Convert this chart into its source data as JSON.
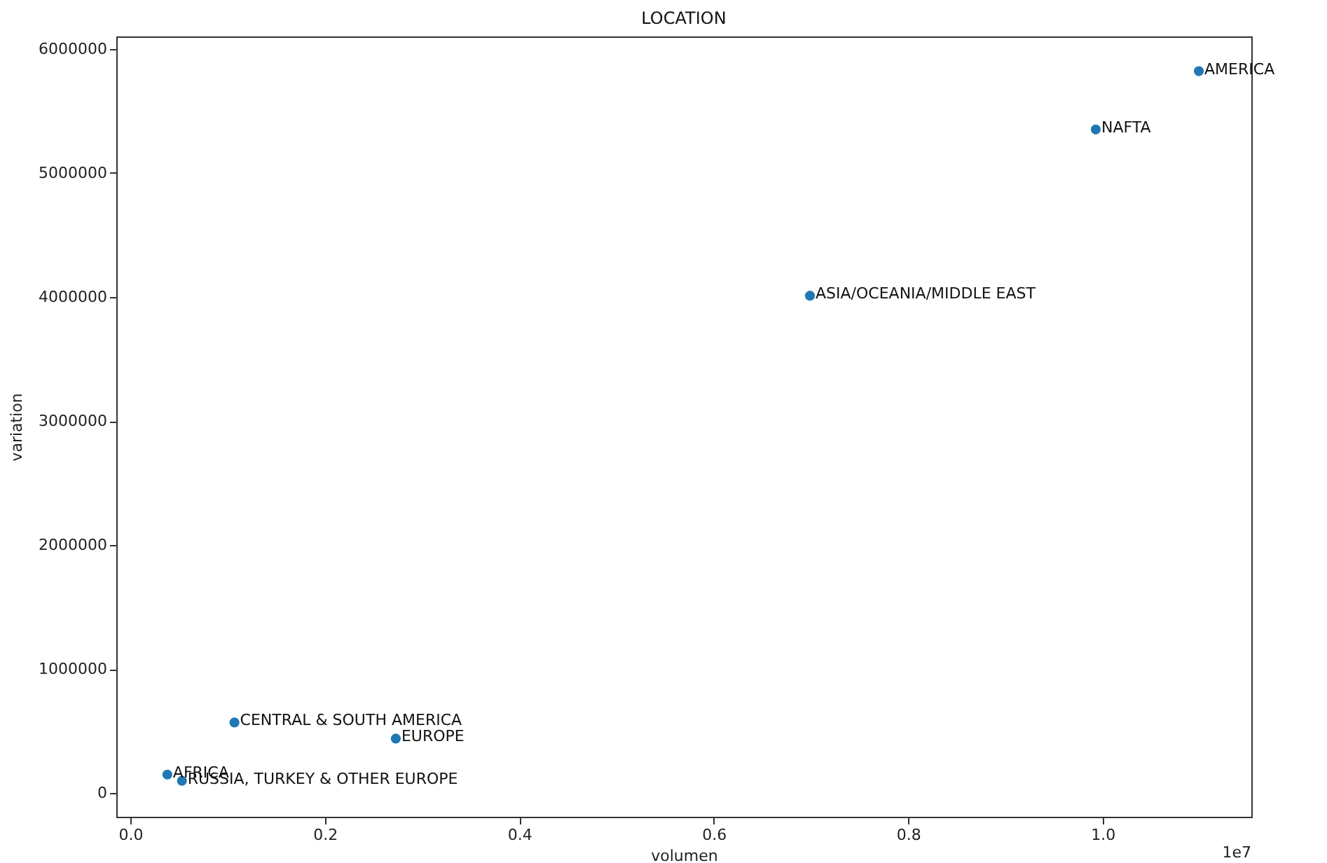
{
  "chart_data": {
    "type": "scatter",
    "title": "LOCATION",
    "xlabel": "volumen",
    "ylabel": "variation",
    "x": [
      1.099,
      0.993,
      0.699,
      0.107,
      0.273,
      0.038,
      0.053
    ],
    "series": [
      {
        "color": "#1f77b4",
        "values": [
          5820000,
          5350000,
          4010000,
          570000,
          440000,
          150000,
          100000
        ]
      }
    ],
    "xlim": [
      -0.0145,
      1.153
    ],
    "ylim": [
      -190000,
      6100000
    ],
    "xticks": [
      {
        "value": 0,
        "label": "0.0"
      },
      0.2,
      0.4,
      0.6,
      0.8,
      {
        "value": 1,
        "label": "1.0"
      }
    ],
    "yticks": [
      0,
      1000000,
      2000000,
      3000000,
      4000000,
      5000000,
      6000000
    ],
    "annotations": [
      {
        "text": "AMERICA",
        "x": 1.099,
        "y": 5820000
      },
      {
        "text": "NAFTA",
        "x": 0.993,
        "y": 5350000
      },
      {
        "text": "ASIA/OCEANIA/MIDDLE EAST",
        "x": 0.699,
        "y": 4010000
      },
      {
        "text": "CENTRAL & SOUTH AMERICA",
        "x": 0.107,
        "y": 570000
      },
      {
        "text": "EUROPE",
        "x": 0.273,
        "y": 440000
      },
      {
        "text": "AFRICA",
        "x": 0.038,
        "y": 150000
      },
      {
        "text": "RUSSIA, TURKEY & OTHER EUROPE",
        "x": 0.053,
        "y": 100000
      },
      "1e7"
    ],
    "grid": false,
    "marker": "circle"
  }
}
